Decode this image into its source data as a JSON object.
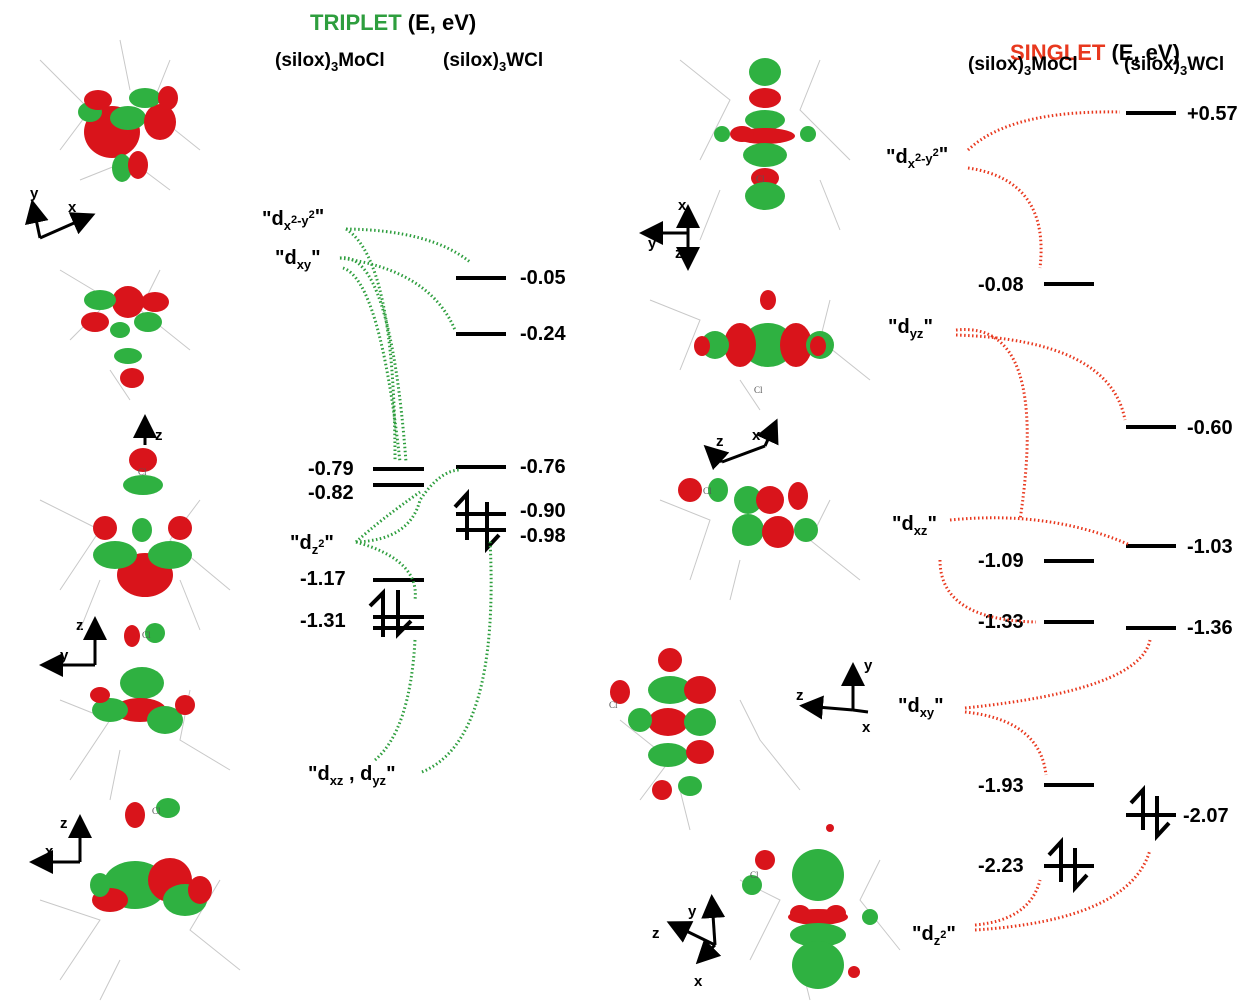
{
  "triplet": {
    "title_word": "TRIPLET",
    "title_rest": " (E, eV)",
    "col_mo": "(silox)",
    "col_mo_sub": "3",
    "col_mo_tail": "MoCl",
    "col_w": "(silox)",
    "col_w_sub": "3",
    "col_w_tail": "WCl",
    "mo_levels": [
      "-0.79",
      "-0.82",
      "-1.17",
      "-1.31"
    ],
    "w_levels": [
      "-0.05",
      "-0.24",
      "-0.76",
      "-0.90",
      "-0.98"
    ],
    "orbital_labels": [
      "dx2-y2",
      "dxy",
      "dz2",
      "dxz , dyz"
    ]
  },
  "singlet": {
    "title_word": "SINGLET",
    "title_rest": " (E, eV)",
    "col_mo": "(silox)",
    "col_mo_sub": "3",
    "col_mo_tail": "MoCl",
    "col_w": "(silox)",
    "col_w_sub": "3",
    "col_w_tail": "WCl",
    "mo_levels": [
      "-0.08",
      "-1.09",
      "-1.33",
      "-1.93",
      "-2.23"
    ],
    "w_levels": [
      "+0.57",
      "-0.60",
      "-1.03",
      "-1.36",
      "-2.07"
    ],
    "orbital_labels": [
      "dx2-y2",
      "dyz",
      "dxz",
      "dxy",
      "dz2"
    ]
  },
  "axes": {
    "x": "x",
    "y": "y",
    "z": "z"
  },
  "atom_label": "Cl",
  "colors": {
    "triplet": "#2e9e3e",
    "singlet": "#e8381e",
    "lobe_red": "#d9141b",
    "lobe_green": "#2fb141"
  }
}
